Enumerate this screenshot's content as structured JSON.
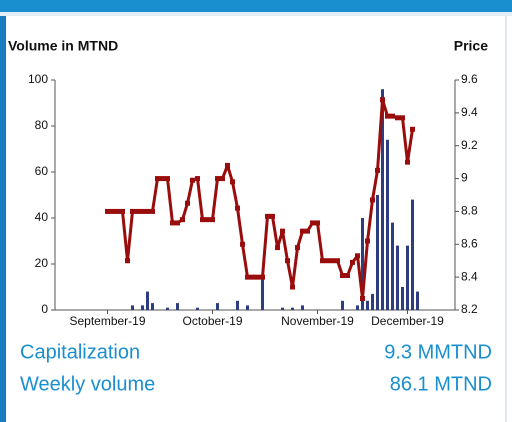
{
  "chart_data": {
    "type": "combo",
    "ylabel": "Volume in MTND",
    "y2label": "Price",
    "categories": [
      null,
      null,
      null,
      null,
      null,
      null,
      null,
      null,
      null,
      null,
      "September-19",
      null,
      null,
      null,
      null,
      null,
      null,
      null,
      null,
      null,
      null,
      null,
      null,
      null,
      null,
      null,
      null,
      null,
      null,
      null,
      null,
      "October-19",
      null,
      null,
      null,
      null,
      null,
      null,
      null,
      null,
      null,
      null,
      null,
      null,
      null,
      null,
      null,
      null,
      null,
      null,
      null,
      null,
      "November-19",
      null,
      null,
      null,
      null,
      null,
      null,
      null,
      null,
      null,
      null,
      null,
      null,
      null,
      null,
      null,
      null,
      null,
      "December-19",
      null,
      null,
      null,
      null,
      null,
      null,
      null,
      null,
      null
    ],
    "series": [
      {
        "type": "bar",
        "color": "#2e3d80",
        "values": [
          null,
          null,
          null,
          null,
          null,
          null,
          null,
          null,
          null,
          null,
          null,
          null,
          null,
          null,
          null,
          2,
          null,
          2,
          8,
          3,
          null,
          null,
          1,
          null,
          3,
          null,
          null,
          null,
          1,
          null,
          null,
          null,
          3,
          null,
          null,
          null,
          4,
          null,
          2,
          null,
          null,
          15,
          null,
          null,
          null,
          1,
          null,
          1,
          null,
          2,
          null,
          null,
          null,
          null,
          null,
          null,
          null,
          4,
          null,
          null,
          2,
          40,
          4,
          7,
          50,
          96,
          74,
          38,
          28,
          10,
          28,
          48,
          8,
          null,
          null,
          null,
          null,
          null,
          null,
          null
        ]
      },
      {
        "type": "line",
        "axis": "y2",
        "color": "#990d0d",
        "values": [
          null,
          null,
          null,
          null,
          null,
          null,
          null,
          null,
          null,
          null,
          8.8,
          8.8,
          8.8,
          8.8,
          8.5,
          8.8,
          8.8,
          8.8,
          8.8,
          8.8,
          9.0,
          9.0,
          9.0,
          8.73,
          8.73,
          8.75,
          8.85,
          8.99,
          9.0,
          8.75,
          8.75,
          8.75,
          9.0,
          9.0,
          9.08,
          8.98,
          8.82,
          8.6,
          8.4,
          8.4,
          8.4,
          8.4,
          8.77,
          8.77,
          8.58,
          8.68,
          8.5,
          8.34,
          8.58,
          8.68,
          8.68,
          8.73,
          8.73,
          8.5,
          8.5,
          8.5,
          8.5,
          8.41,
          8.41,
          8.49,
          8.53,
          8.27,
          8.62,
          8.87,
          9.05,
          9.48,
          9.38,
          9.38,
          9.37,
          9.37,
          9.1,
          9.3,
          null,
          null,
          null,
          null,
          null,
          null,
          null,
          null
        ]
      }
    ],
    "ylim": [
      0,
      100
    ],
    "yticks": [
      0,
      20,
      40,
      60,
      80,
      100
    ],
    "y2lim": [
      8.2,
      9.6
    ],
    "y2ticks": [
      8.2,
      8.4,
      8.6,
      8.8,
      9,
      9.2,
      9.4,
      9.6
    ],
    "grid": false
  },
  "stats": [
    {
      "label": "Capitalization",
      "value": "9.3 MMTND"
    },
    {
      "label": "Weekly volume",
      "value": "86.1 MTND"
    }
  ]
}
